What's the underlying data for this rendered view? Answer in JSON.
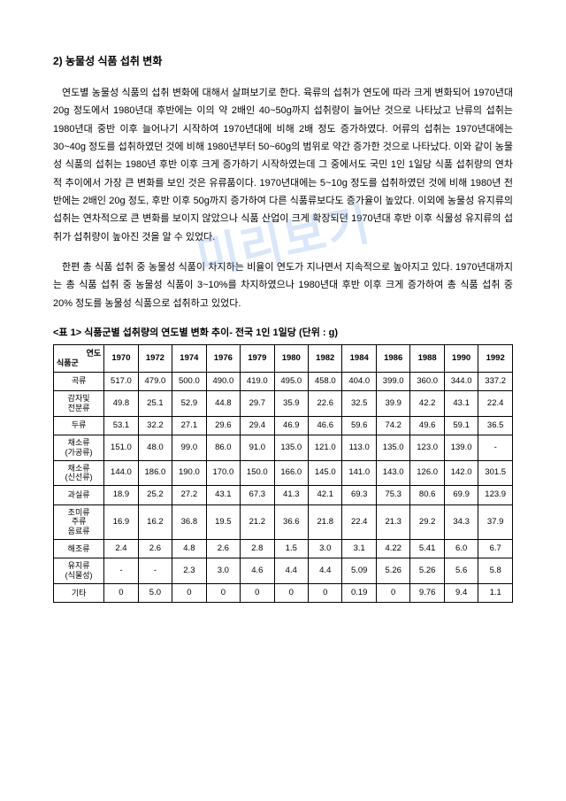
{
  "watermark": "미리보기",
  "sectionTitle": "2) 농물성 식품 섭취 변화",
  "para1": "연도별 농물성 식품의 섭취 변화에 대해서 살펴보기로 한다. 육류의 섭취가 연도에 따라 크게 변화되어 1970년대 20g 정도에서 1980년대 후반에는 이의 약 2배인 40~50g까지 섭취량이 늘어난 것으로 나타났고 난류의 섭취는 1980년대 중반 이후 늘어나기 시작하여 1970년대에 비해 2배 정도 증가하였다. 어류의 섭취는 1970년대에는 30~40g 정도를 섭취하였던 것에 비해 1980년부터 50~60g의 범위로 약간 증가한 것으로 나타났다. 이와 같이 농물성 식품의 섭취는 1980년 후반 이후 크게 증가하기 시작하였는데 그 중에서도 국민 1인 1일당 식품 섭취량의 연차적 추이에서 가장 큰 변화를 보인 것은 유류품이다. 1970년대에는 5~10g 정도를 섭취하였던 것에 비해 1980년 전반에는 2배인 20g 정도, 후반 이후 50g까지 증가하여 다른 식품류보다도 증가율이 높았다. 이외에 농물성 유지류의 섭취는 연차적으로 큰 변화를 보이지 않았으나 식품 산업이 크게 확장되던 1970년대 후반 이후 식물성 유지류의 섭취가 섭취량이 높아진 것을 알 수 있었다.",
  "para2": "한편 총 식품 섭취 중 농물성 식품이 차지하는 비율이 연도가 지나면서 지속적으로 높아지고 있다. 1970년대까지는 총 식품 섭취 중 농물성 식품이 3~10%를 차지하였으나 1980년대 후반 이후 크게 증가하여 총 식품 섭취 중 20% 정도를 농물성 식품으로 섭취하고 있었다.",
  "tableCaption": "<표 1> 식품군별 섭취량의 연도별 변화 추이- 전국 1인 1일당 (단위 : g)",
  "cornerTop": "연도",
  "cornerBottom": "식품군",
  "years": [
    "1970",
    "1972",
    "1974",
    "1976",
    "1979",
    "1980",
    "1982",
    "1984",
    "1986",
    "1988",
    "1990",
    "1992"
  ],
  "rows": [
    {
      "label": "곡류",
      "cells": [
        "517.0",
        "479.0",
        "500.0",
        "490.0",
        "419.0",
        "495.0",
        "458.0",
        "404.0",
        "399.0",
        "360.0",
        "344.0",
        "337.2"
      ]
    },
    {
      "label": "감자및\n전분류",
      "cells": [
        "49.8",
        "25.1",
        "52.9",
        "44.8",
        "29.7",
        "35.9",
        "22.6",
        "32.5",
        "39.9",
        "42.2",
        "43.1",
        "22.4"
      ]
    },
    {
      "label": "두류",
      "cells": [
        "53.1",
        "32.2",
        "27.1",
        "29.6",
        "29.4",
        "46.9",
        "46.6",
        "59.6",
        "74.2",
        "49.6",
        "59.1",
        "36.5"
      ]
    },
    {
      "label": "채소류\n(가공류)",
      "cells": [
        "151.0",
        "48.0",
        "99.0",
        "86.0",
        "91.0",
        "135.0",
        "121.0",
        "113.0",
        "135.0",
        "123.0",
        "139.0",
        "-"
      ]
    },
    {
      "label": "채소류\n(신선류)",
      "cells": [
        "144.0",
        "186.0",
        "190.0",
        "170.0",
        "150.0",
        "166.0",
        "145.0",
        "141.0",
        "143.0",
        "126.0",
        "142.0",
        "301.5"
      ]
    },
    {
      "label": "과실류",
      "cells": [
        "18.9",
        "25.2",
        "27.2",
        "43.1",
        "67.3",
        "41.3",
        "42.1",
        "69.3",
        "75.3",
        "80.6",
        "69.9",
        "123.9"
      ]
    },
    {
      "label": "조미류\n주류\n음료류",
      "cells": [
        "16.9",
        "16.2",
        "36.8",
        "19.5",
        "21.2",
        "36.6",
        "21.8",
        "22.4",
        "21.3",
        "29.2",
        "34.3",
        "37.9"
      ]
    },
    {
      "label": "해조류",
      "cells": [
        "2.4",
        "2.6",
        "4.8",
        "2.6",
        "2.8",
        "1.5",
        "3.0",
        "3.1",
        "4.22",
        "5.41",
        "6.0",
        "6.7"
      ]
    },
    {
      "label": "유지류\n(식물성)",
      "cells": [
        "-",
        "-",
        "2.3",
        "3.0",
        "4.6",
        "4.4",
        "4.4",
        "5.09",
        "5.26",
        "5.26",
        "5.6",
        "5.8"
      ]
    },
    {
      "label": "기타",
      "cells": [
        "0",
        "5.0",
        "0",
        "0",
        "0",
        "0",
        "0",
        "0.19",
        "0",
        "9.76",
        "9.4",
        "1.1"
      ]
    }
  ]
}
